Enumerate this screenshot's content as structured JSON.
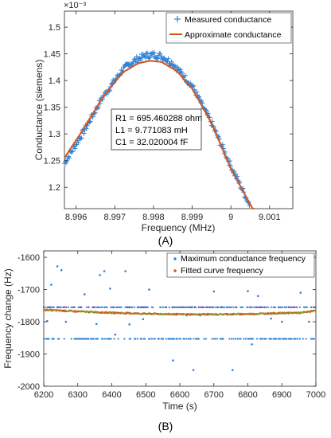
{
  "chart_data": [
    {
      "panel_label": "(A)",
      "type": "scatter",
      "xlabel": "Frequency (MHz)",
      "ylabel": "Conductance (siemens)",
      "y_exponent": "×10⁻³",
      "xlim": [
        8.9957,
        9.0016
      ],
      "ylim": [
        1.16,
        1.53
      ],
      "xticks": [
        8.996,
        8.997,
        8.998,
        8.999,
        9.0,
        9.001
      ],
      "xtick_labels": [
        "8.996",
        "8.997",
        "8.998",
        "8.999",
        "9",
        "9.001"
      ],
      "yticks": [
        1.2,
        1.25,
        1.3,
        1.35,
        1.4,
        1.45,
        1.5
      ],
      "ytick_labels": [
        "1.2",
        "1.25",
        "1.3",
        "1.35",
        "1.4",
        "1.45",
        "1.5"
      ],
      "legend_position": "top-right",
      "annotation_lines": [
        "R1 = 695.460288 ohm",
        "L1 = 9.771083 mH",
        "C1 = 32.020004 fF"
      ],
      "series": [
        {
          "name": "Measured conductance",
          "marker": "plus",
          "color": "#2f83d6",
          "x": [
            8.9957,
            8.9962,
            8.9967,
            8.9972,
            8.9975,
            8.9978,
            8.998,
            8.9982,
            8.9985,
            8.999,
            8.9995,
            9.0,
            9.0005
          ],
          "y": [
            1.245,
            1.305,
            1.37,
            1.42,
            1.437,
            1.447,
            1.448,
            1.446,
            1.432,
            1.39,
            1.32,
            1.24,
            1.165
          ]
        },
        {
          "name": "Approximate conductance",
          "line": true,
          "color": "#d95319",
          "x": [
            8.9957,
            8.9962,
            8.9967,
            8.9972,
            8.9976,
            8.9979,
            8.9982,
            8.9986,
            8.999,
            8.9995,
            9.0,
            9.0006
          ],
          "y": [
            1.255,
            1.31,
            1.37,
            1.415,
            1.432,
            1.437,
            1.435,
            1.418,
            1.385,
            1.32,
            1.235,
            1.155
          ]
        }
      ]
    },
    {
      "panel_label": "(B)",
      "type": "scatter",
      "xlabel": "Time (s)",
      "ylabel": "Frequency change (Hz)",
      "xlim": [
        6200,
        7000
      ],
      "ylim": [
        -2000,
        -1580
      ],
      "xticks": [
        6200,
        6300,
        6400,
        6500,
        6600,
        6700,
        6800,
        6900,
        7000
      ],
      "xtick_labels": [
        "6200",
        "6300",
        "6400",
        "6500",
        "6600",
        "6700",
        "6800",
        "6900",
        "7000"
      ],
      "yticks": [
        -2000,
        -1900,
        -1800,
        -1700,
        -1600
      ],
      "ytick_labels": [
        "-2000",
        "-1900",
        "-1800",
        "-1700",
        "-1600"
      ],
      "legend_position": "top-right",
      "series": [
        {
          "name": "Maximum conductance frequency",
          "marker": "dot",
          "color": "#2f83d6",
          "bands": [
            -1755,
            -1853
          ],
          "outliers_x": [
            6210,
            6222,
            6240,
            6252,
            6265,
            6320,
            6355,
            6365,
            6378,
            6395,
            6410,
            6440,
            6452,
            6492,
            6510,
            6580,
            6620,
            6640,
            6660,
            6700,
            6755,
            6800,
            6812,
            6830,
            6868,
            6900,
            6955,
            6980
          ],
          "outliers_y": [
            -1798,
            -1685,
            -1628,
            -1640,
            -1800,
            -1715,
            -1807,
            -1655,
            -1643,
            -1697,
            -1840,
            -1643,
            -1808,
            -1792,
            -1700,
            -1920,
            -1780,
            -1950,
            -1780,
            -1706,
            -1950,
            -1705,
            -1870,
            -1720,
            -1790,
            -1800,
            -1710,
            -1800
          ]
        },
        {
          "name": "Fitted curve frequency",
          "marker": "dot",
          "color": "#d95319",
          "x": [
            6200,
            6300,
            6400,
            6500,
            6600,
            6700,
            6800,
            6900,
            6960,
            7000
          ],
          "y": [
            -1763,
            -1768,
            -1772,
            -1775,
            -1777,
            -1777,
            -1776,
            -1773,
            -1772,
            -1765
          ]
        }
      ]
    }
  ]
}
